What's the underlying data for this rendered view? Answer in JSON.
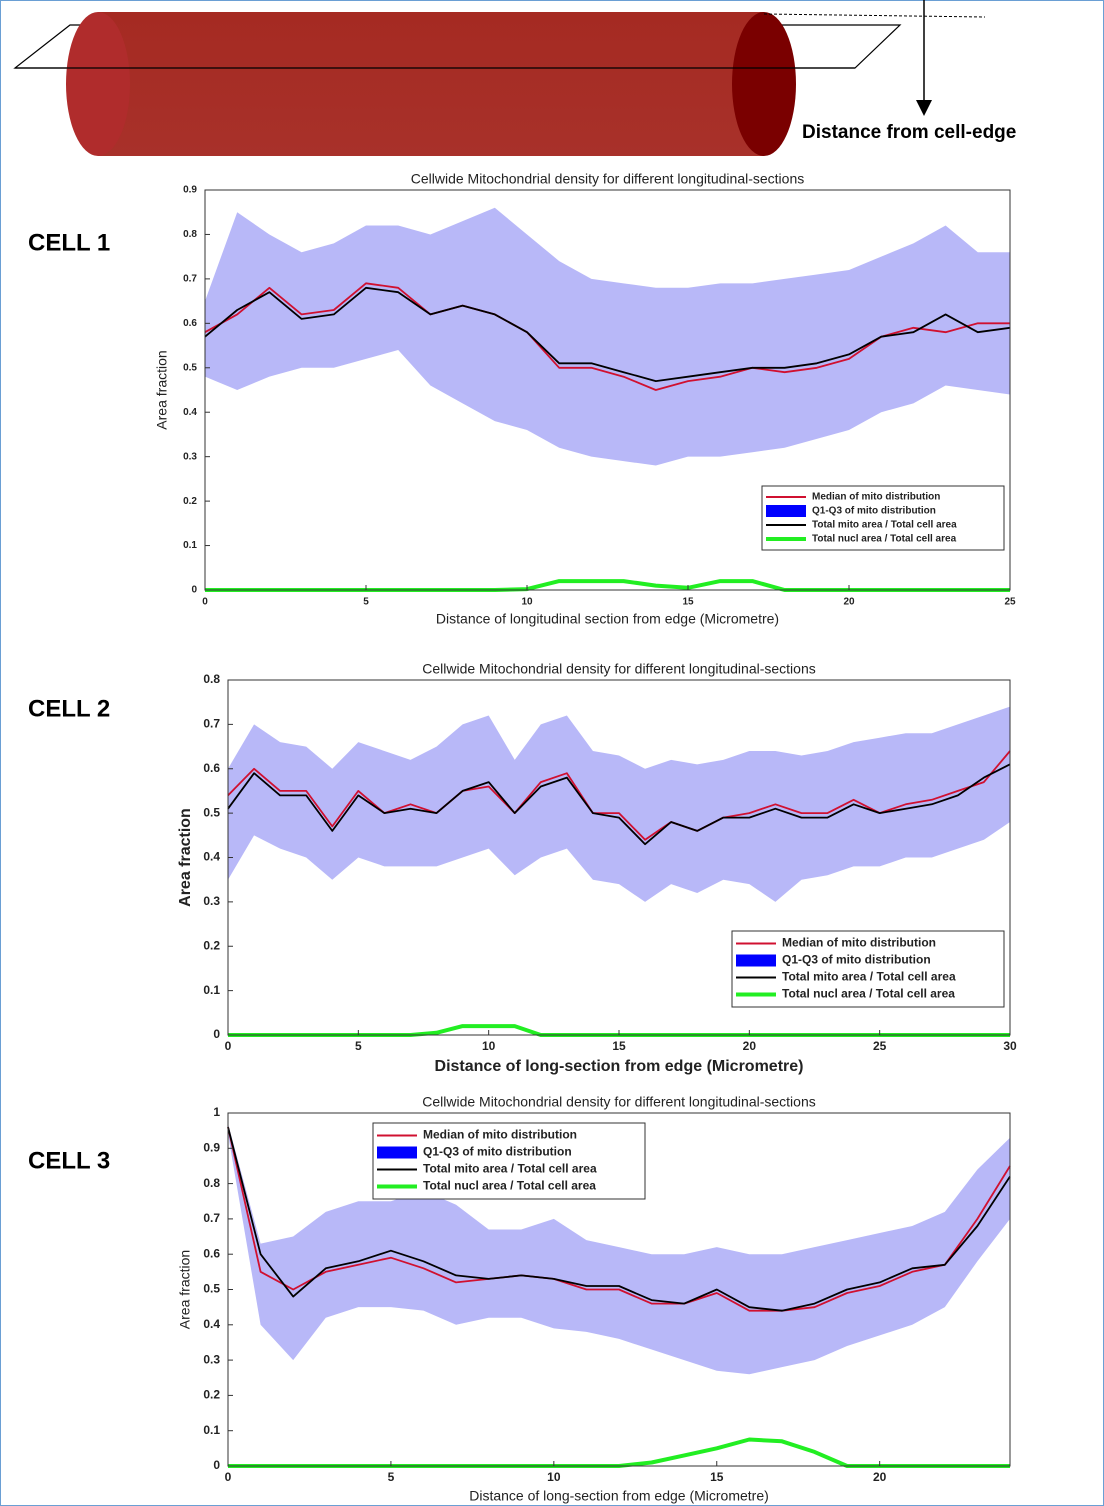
{
  "diagram": {
    "label": "Distance from cell-edge"
  },
  "chart_data": [
    {
      "type": "line",
      "panel_label": "CELL 1",
      "title": "Cellwide Mitochondrial density for different longitudinal-sections",
      "xlabel": "Distance of longitudinal section from edge (Micrometre)",
      "ylabel": "Area fraction",
      "legend": "lower right",
      "xlim": [
        0,
        25
      ],
      "xticks": [
        0,
        5,
        10,
        15,
        20,
        25
      ],
      "ylim": [
        0,
        0.9
      ],
      "yticks": [
        0,
        0.1,
        0.2,
        0.3,
        0.4,
        0.5,
        0.6,
        0.7,
        0.8,
        0.9
      ],
      "x": [
        0,
        1,
        2,
        3,
        4,
        5,
        6,
        7,
        8,
        9,
        10,
        11,
        12,
        13,
        14,
        15,
        16,
        17,
        18,
        19,
        20,
        21,
        22,
        23,
        24,
        25
      ],
      "series": [
        {
          "name": "Median of mito distribution",
          "color": "#d01030",
          "values": [
            0.58,
            0.62,
            0.68,
            0.62,
            0.63,
            0.69,
            0.68,
            0.62,
            0.64,
            0.62,
            0.58,
            0.5,
            0.5,
            0.48,
            0.45,
            0.47,
            0.48,
            0.5,
            0.49,
            0.5,
            0.52,
            0.57,
            0.59,
            0.58,
            0.6,
            0.6
          ]
        },
        {
          "name": "Q1-Q3 of mito distribution",
          "color": "#0000ff",
          "fill": "#b8b8f8",
          "upper": [
            0.65,
            0.85,
            0.8,
            0.76,
            0.78,
            0.82,
            0.82,
            0.8,
            0.83,
            0.86,
            0.8,
            0.74,
            0.7,
            0.69,
            0.68,
            0.68,
            0.69,
            0.69,
            0.7,
            0.71,
            0.72,
            0.75,
            0.78,
            0.82,
            0.76,
            0.76
          ],
          "lower": [
            0.48,
            0.45,
            0.48,
            0.5,
            0.5,
            0.52,
            0.54,
            0.46,
            0.42,
            0.38,
            0.36,
            0.32,
            0.3,
            0.29,
            0.28,
            0.3,
            0.3,
            0.31,
            0.32,
            0.34,
            0.36,
            0.4,
            0.42,
            0.46,
            0.45,
            0.44
          ]
        },
        {
          "name": "Total mito area / Total cell area",
          "color": "#000000",
          "values": [
            0.57,
            0.63,
            0.67,
            0.61,
            0.62,
            0.68,
            0.67,
            0.62,
            0.64,
            0.62,
            0.58,
            0.51,
            0.51,
            0.49,
            0.47,
            0.48,
            0.49,
            0.5,
            0.5,
            0.51,
            0.53,
            0.57,
            0.58,
            0.62,
            0.58,
            0.59
          ]
        },
        {
          "name": "Total nucl area / Total cell area",
          "color": "#22ee22",
          "linewidth": 4,
          "values": [
            0,
            0,
            0,
            0,
            0,
            0,
            0,
            0,
            0,
            0,
            0.002,
            0.02,
            0.02,
            0.02,
            0.01,
            0.005,
            0.02,
            0.02,
            0,
            0,
            0,
            0,
            0,
            0,
            0,
            0
          ]
        }
      ]
    },
    {
      "type": "line",
      "panel_label": "CELL 2",
      "title": "Cellwide Mitochondrial density for different longitudinal-sections",
      "xlabel": "Distance of long-section from edge (Micrometre)",
      "ylabel": "Area fraction",
      "legend": "lower right",
      "xlim": [
        0,
        30
      ],
      "xticks": [
        0,
        5,
        10,
        15,
        20,
        25,
        30
      ],
      "ylim": [
        0,
        0.8
      ],
      "yticks": [
        0,
        0.1,
        0.2,
        0.3,
        0.4,
        0.5,
        0.6,
        0.7,
        0.8
      ],
      "x": [
        0,
        1,
        2,
        3,
        4,
        5,
        6,
        7,
        8,
        9,
        10,
        11,
        12,
        13,
        14,
        15,
        16,
        17,
        18,
        19,
        20,
        21,
        22,
        23,
        24,
        25,
        26,
        27,
        28,
        29,
        30
      ],
      "series": [
        {
          "name": "Median of mito distribution",
          "color": "#d01030",
          "values": [
            0.54,
            0.6,
            0.55,
            0.55,
            0.47,
            0.55,
            0.5,
            0.52,
            0.5,
            0.55,
            0.56,
            0.5,
            0.57,
            0.59,
            0.5,
            0.5,
            0.44,
            0.48,
            0.46,
            0.49,
            0.5,
            0.52,
            0.5,
            0.5,
            0.53,
            0.5,
            0.52,
            0.53,
            0.55,
            0.57,
            0.64
          ]
        },
        {
          "name": "Q1-Q3 of mito distribution",
          "color": "#0000ff",
          "fill": "#b8b8f8",
          "upper": [
            0.6,
            0.7,
            0.66,
            0.65,
            0.6,
            0.66,
            0.64,
            0.62,
            0.65,
            0.7,
            0.72,
            0.62,
            0.7,
            0.72,
            0.64,
            0.63,
            0.6,
            0.62,
            0.61,
            0.62,
            0.64,
            0.64,
            0.63,
            0.64,
            0.66,
            0.67,
            0.68,
            0.68,
            0.7,
            0.72,
            0.74
          ],
          "lower": [
            0.35,
            0.45,
            0.42,
            0.4,
            0.35,
            0.4,
            0.38,
            0.38,
            0.38,
            0.4,
            0.42,
            0.36,
            0.4,
            0.42,
            0.35,
            0.34,
            0.3,
            0.34,
            0.32,
            0.35,
            0.34,
            0.3,
            0.35,
            0.36,
            0.38,
            0.38,
            0.4,
            0.4,
            0.42,
            0.44,
            0.48
          ]
        },
        {
          "name": "Total mito area / Total cell area",
          "color": "#000000",
          "values": [
            0.51,
            0.59,
            0.54,
            0.54,
            0.46,
            0.54,
            0.5,
            0.51,
            0.5,
            0.55,
            0.57,
            0.5,
            0.56,
            0.58,
            0.5,
            0.49,
            0.43,
            0.48,
            0.46,
            0.49,
            0.49,
            0.51,
            0.49,
            0.49,
            0.52,
            0.5,
            0.51,
            0.52,
            0.54,
            0.58,
            0.61
          ]
        },
        {
          "name": "Total nucl area / Total cell area",
          "color": "#22ee22",
          "linewidth": 4,
          "values": [
            0,
            0,
            0,
            0,
            0,
            0,
            0,
            0,
            0.005,
            0.02,
            0.02,
            0.02,
            0,
            0,
            0,
            0,
            0,
            0,
            0,
            0,
            0,
            0,
            0,
            0,
            0,
            0,
            0,
            0,
            0,
            0,
            0
          ]
        }
      ]
    },
    {
      "type": "line",
      "panel_label": "CELL 3",
      "title": "Cellwide Mitochondrial density for different longitudinal-sections",
      "xlabel": "Distance of long-section from edge (Micrometre)",
      "ylabel": "Area fraction",
      "legend": "upper center",
      "xlim": [
        0,
        24
      ],
      "xticks": [
        0,
        5,
        10,
        15,
        20
      ],
      "ylim": [
        0,
        1
      ],
      "yticks": [
        0,
        0.1,
        0.2,
        0.3,
        0.4,
        0.5,
        0.6,
        0.7,
        0.8,
        0.9,
        1
      ],
      "x": [
        0,
        1,
        2,
        3,
        4,
        5,
        6,
        7,
        8,
        9,
        10,
        11,
        12,
        13,
        14,
        15,
        16,
        17,
        18,
        19,
        20,
        21,
        22,
        23,
        24
      ],
      "series": [
        {
          "name": "Median of mito distribution",
          "color": "#d01030",
          "values": [
            0.96,
            0.55,
            0.5,
            0.55,
            0.57,
            0.59,
            0.56,
            0.52,
            0.53,
            0.54,
            0.53,
            0.5,
            0.5,
            0.46,
            0.46,
            0.49,
            0.44,
            0.44,
            0.45,
            0.49,
            0.51,
            0.55,
            0.57,
            0.7,
            0.85
          ]
        },
        {
          "name": "Q1-Q3 of mito distribution",
          "color": "#0000ff",
          "fill": "#b8b8f8",
          "upper": [
            0.97,
            0.63,
            0.65,
            0.72,
            0.75,
            0.75,
            0.78,
            0.74,
            0.67,
            0.67,
            0.7,
            0.64,
            0.62,
            0.6,
            0.6,
            0.62,
            0.6,
            0.6,
            0.62,
            0.64,
            0.66,
            0.68,
            0.72,
            0.84,
            0.93
          ],
          "lower": [
            0.94,
            0.4,
            0.3,
            0.42,
            0.45,
            0.45,
            0.44,
            0.4,
            0.42,
            0.42,
            0.39,
            0.38,
            0.36,
            0.33,
            0.3,
            0.27,
            0.26,
            0.28,
            0.3,
            0.34,
            0.37,
            0.4,
            0.45,
            0.58,
            0.7
          ]
        },
        {
          "name": "Total mito area / Total cell area",
          "color": "#000000",
          "values": [
            0.96,
            0.6,
            0.48,
            0.56,
            0.58,
            0.61,
            0.58,
            0.54,
            0.53,
            0.54,
            0.53,
            0.51,
            0.51,
            0.47,
            0.46,
            0.5,
            0.45,
            0.44,
            0.46,
            0.5,
            0.52,
            0.56,
            0.57,
            0.68,
            0.82
          ]
        },
        {
          "name": "Total nucl area / Total cell area",
          "color": "#22ee22",
          "linewidth": 4,
          "values": [
            0,
            0,
            0,
            0,
            0,
            0,
            0,
            0,
            0,
            0,
            0,
            0,
            0,
            0.01,
            0.03,
            0.05,
            0.075,
            0.07,
            0.04,
            0,
            0,
            0,
            0,
            0,
            0
          ]
        }
      ]
    }
  ]
}
